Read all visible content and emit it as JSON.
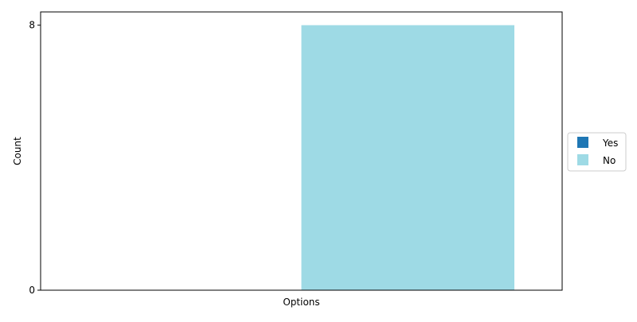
{
  "chart_data": {
    "type": "bar",
    "xlabel": "Options",
    "ylabel": "Count",
    "ylim": [
      0,
      8.4
    ],
    "yticks": [
      0,
      8
    ],
    "categories": [
      "Yes",
      "No"
    ],
    "values": [
      0,
      8
    ],
    "series": [
      {
        "name": "Yes",
        "color": "#1f77b4",
        "value": 0
      },
      {
        "name": "No",
        "color": "#9edae5",
        "value": 8
      }
    ],
    "grid": false,
    "legend": "center-right, outside plot"
  }
}
